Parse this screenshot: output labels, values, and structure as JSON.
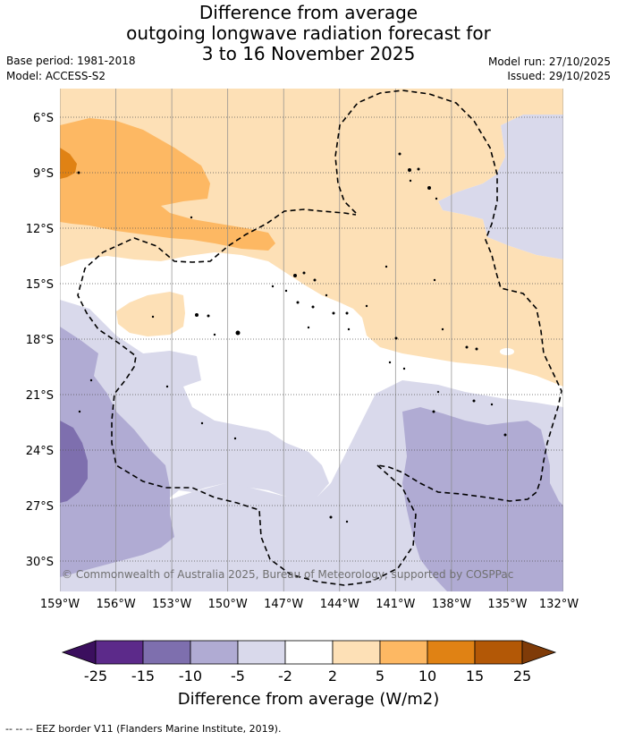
{
  "title": {
    "line1": "Difference from average",
    "line2": "outgoing longwave radiation forecast for",
    "line3": "3 to 16 November 2025"
  },
  "meta_left": {
    "base_period": "Base period: 1981-2018",
    "model": "Model: ACCESS-S2"
  },
  "meta_right": {
    "model_run": "Model run: 27/10/2025",
    "issued": "Issued: 29/10/2025"
  },
  "axes": {
    "lat_labels": [
      "6°S",
      "9°S",
      "12°S",
      "15°S",
      "18°S",
      "21°S",
      "24°S",
      "27°S",
      "30°S"
    ],
    "lon_labels": [
      "159°W",
      "156°W",
      "153°W",
      "150°W",
      "147°W",
      "144°W",
      "141°W",
      "138°W",
      "135°W",
      "132°W"
    ]
  },
  "copyright": "© Commonwealth of Australia 2025, Bureau of Meteorology, supported by COSPPac",
  "colorbar": {
    "title": "Difference from average (W/m2)",
    "ticks": [
      "-25",
      "-15",
      "-10",
      "-5",
      "-2",
      "2",
      "5",
      "10",
      "15",
      "25"
    ],
    "colors": {
      "below": "#3b0f5e",
      "c1": "#5c2a8a",
      "c2": "#7e6fae",
      "c3": "#b0abd3",
      "c4": "#d9d9eb",
      "c5": "#ffffff",
      "c6": "#fde0b6",
      "c7": "#fdb863",
      "c8": "#e08214",
      "c9": "#b35806",
      "above": "#7f3b08"
    }
  },
  "footer": "--  --  -- EEZ border V11 (Flanders Marine Institute, 2019)."
}
